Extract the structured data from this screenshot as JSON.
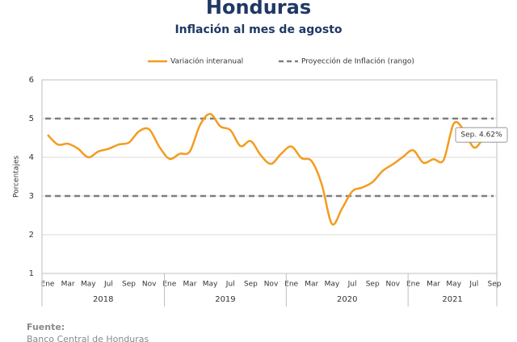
{
  "chart_data": {
    "type": "line",
    "title": "Honduras",
    "subtitle": "Inflación al mes de agosto",
    "y_label": "Porcentajes",
    "categories": [
      "Ene",
      null,
      "Mar",
      null,
      "May",
      null,
      "Jul",
      null,
      "Sep",
      null,
      "Nov",
      null,
      "Ene",
      null,
      "Mar",
      null,
      "May",
      null,
      "Jul",
      null,
      "Sep",
      null,
      "Nov",
      null,
      "Ene",
      null,
      "Mar",
      null,
      "May",
      null,
      "Jul",
      null,
      "Sep",
      null,
      "Nov",
      null,
      "Ene",
      null,
      "Mar",
      null,
      "May",
      null,
      "Jul",
      null,
      "Sep"
    ],
    "year_groups": [
      {
        "label": "2018",
        "months": 12
      },
      {
        "label": "2019",
        "months": 12
      },
      {
        "label": "2020",
        "months": 12
      },
      {
        "label": "2021",
        "months": 9
      }
    ],
    "series": [
      {
        "name": "Variación interanual",
        "color": "#f39c1f",
        "values": [
          4.58,
          4.33,
          4.35,
          4.22,
          4.0,
          4.15,
          4.22,
          4.33,
          4.38,
          4.67,
          4.72,
          4.27,
          3.96,
          4.09,
          4.15,
          4.83,
          5.12,
          4.8,
          4.7,
          4.29,
          4.42,
          4.05,
          3.83,
          4.09,
          4.28,
          3.98,
          3.9,
          3.3,
          2.28,
          2.68,
          3.12,
          3.22,
          3.36,
          3.65,
          3.82,
          4.01,
          4.18,
          3.86,
          3.95,
          3.93,
          4.87,
          4.7,
          4.25,
          4.5,
          4.62
        ],
        "value_labels": [
          null,
          null,
          null,
          null,
          null,
          null,
          null,
          null,
          null,
          null,
          null,
          null,
          null,
          null,
          null,
          null,
          null,
          null,
          null,
          null,
          null,
          null,
          null,
          null,
          null,
          null,
          null,
          null,
          null,
          null,
          null,
          null,
          null,
          null,
          null,
          null,
          null,
          null,
          null,
          null,
          null,
          null,
          null,
          null,
          "Sep. 4.62%"
        ]
      }
    ],
    "range": {
      "name": "Proyección de Inflación (rango)",
      "color": "#7f7f7f",
      "values": [
        3,
        5
      ]
    },
    "ylim": [
      1,
      6
    ],
    "yticks": [
      1,
      2,
      3,
      4,
      5,
      6
    ],
    "grid": true
  },
  "footer": {
    "source_label": "Fuente:",
    "source": "Banco Central de Honduras"
  }
}
